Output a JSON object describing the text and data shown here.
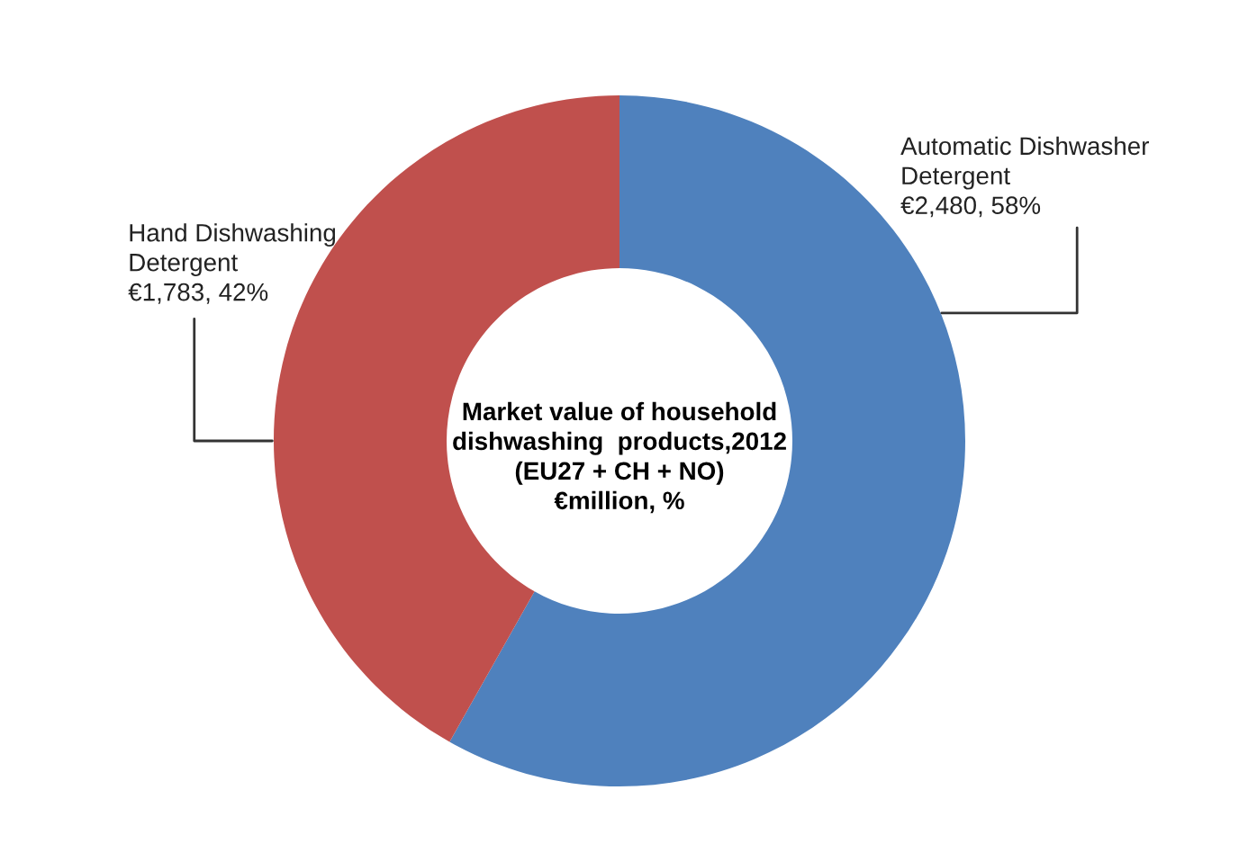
{
  "chart_data": {
    "type": "donut",
    "title": "Market value of household\ndishwashing  products,2012\n(EU27 + CH + NO)\n€million, %",
    "categories": [
      "Automatic Dishwasher\nDetergent",
      "Hand Dishwashing\nDetergent"
    ],
    "values": [
      2480,
      1783
    ],
    "value_labels": [
      "€2,480, 58%",
      "€1,783, 42%"
    ],
    "colors": [
      "#4f81bd",
      "#c0504d"
    ],
    "legend": false
  }
}
